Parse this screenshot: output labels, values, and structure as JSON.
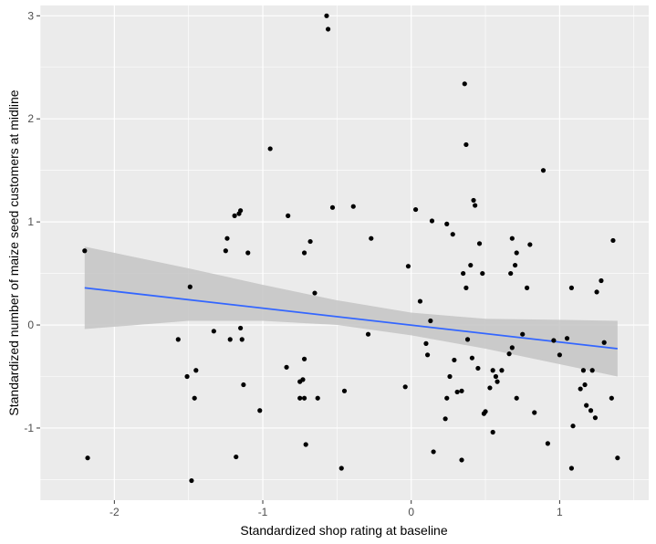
{
  "chart_data": {
    "type": "scatter",
    "title": "",
    "xlabel": "Standardized shop rating at baseline",
    "ylabel": "Standardized number of maize seed customers at midline",
    "xlim": [
      -2.5,
      1.6
    ],
    "ylim": [
      -1.7,
      3.1
    ],
    "x_ticks": [
      -2,
      -1,
      0,
      1
    ],
    "x_tick_labels": [
      "-2",
      "-1",
      "0",
      "1"
    ],
    "y_ticks": [
      -1,
      0,
      1,
      2,
      3
    ],
    "y_tick_labels": [
      "-1",
      "0",
      "1",
      "2",
      "3"
    ],
    "grid": true,
    "legend": "none",
    "colors": {
      "panel_background": "#ebebeb",
      "grid": "#ffffff",
      "points": "#000000",
      "smooth_line": "#3366ff",
      "confidence_band": "#c4c4c4"
    },
    "points": [
      [
        -2.2,
        0.72
      ],
      [
        -2.18,
        -1.29
      ],
      [
        -1.57,
        -0.14
      ],
      [
        -1.51,
        -0.5
      ],
      [
        -1.49,
        0.37
      ],
      [
        -1.48,
        -1.51
      ],
      [
        -1.46,
        -0.71
      ],
      [
        -1.45,
        -0.44
      ],
      [
        -1.33,
        -0.06
      ],
      [
        -1.25,
        0.72
      ],
      [
        -1.24,
        0.84
      ],
      [
        -1.22,
        -0.14
      ],
      [
        -1.19,
        1.06
      ],
      [
        -1.18,
        -1.28
      ],
      [
        -1.16,
        1.08
      ],
      [
        -1.15,
        1.11
      ],
      [
        -1.15,
        -0.03
      ],
      [
        -1.14,
        -0.14
      ],
      [
        -1.13,
        -0.58
      ],
      [
        -1.1,
        0.7
      ],
      [
        -1.02,
        -0.83
      ],
      [
        -0.95,
        1.71
      ],
      [
        -0.84,
        -0.41
      ],
      [
        -0.83,
        1.06
      ],
      [
        -0.75,
        -0.71
      ],
      [
        -0.75,
        -0.55
      ],
      [
        -0.73,
        -0.53
      ],
      [
        -0.72,
        -0.71
      ],
      [
        -0.72,
        0.7
      ],
      [
        -0.72,
        -0.33
      ],
      [
        -0.71,
        -1.16
      ],
      [
        -0.68,
        0.81
      ],
      [
        -0.65,
        0.31
      ],
      [
        -0.63,
        -0.71
      ],
      [
        -0.57,
        3.0
      ],
      [
        -0.56,
        2.87
      ],
      [
        -0.53,
        1.14
      ],
      [
        -0.47,
        -1.39
      ],
      [
        -0.45,
        -0.64
      ],
      [
        -0.39,
        1.15
      ],
      [
        -0.29,
        -0.09
      ],
      [
        -0.27,
        0.84
      ],
      [
        -0.04,
        -0.6
      ],
      [
        -0.02,
        0.57
      ],
      [
        0.03,
        1.12
      ],
      [
        0.06,
        0.23
      ],
      [
        0.1,
        -0.18
      ],
      [
        0.11,
        -0.29
      ],
      [
        0.13,
        0.04
      ],
      [
        0.14,
        1.01
      ],
      [
        0.15,
        -1.23
      ],
      [
        0.23,
        -0.91
      ],
      [
        0.24,
        -0.71
      ],
      [
        0.24,
        0.98
      ],
      [
        0.26,
        -0.5
      ],
      [
        0.28,
        0.88
      ],
      [
        0.29,
        -0.34
      ],
      [
        0.31,
        -0.65
      ],
      [
        0.34,
        -0.64
      ],
      [
        0.34,
        -1.31
      ],
      [
        0.35,
        0.5
      ],
      [
        0.36,
        2.34
      ],
      [
        0.37,
        0.36
      ],
      [
        0.37,
        1.75
      ],
      [
        0.38,
        -0.14
      ],
      [
        0.4,
        0.58
      ],
      [
        0.41,
        -0.32
      ],
      [
        0.42,
        1.21
      ],
      [
        0.43,
        1.16
      ],
      [
        0.45,
        -0.42
      ],
      [
        0.46,
        0.79
      ],
      [
        0.48,
        0.5
      ],
      [
        0.49,
        -0.86
      ],
      [
        0.5,
        -0.84
      ],
      [
        0.53,
        -0.61
      ],
      [
        0.55,
        -1.04
      ],
      [
        0.55,
        -0.44
      ],
      [
        0.57,
        -0.5
      ],
      [
        0.58,
        -0.55
      ],
      [
        0.61,
        -0.44
      ],
      [
        0.66,
        -0.28
      ],
      [
        0.67,
        0.5
      ],
      [
        0.68,
        -0.22
      ],
      [
        0.68,
        0.84
      ],
      [
        0.7,
        0.58
      ],
      [
        0.71,
        0.7
      ],
      [
        0.71,
        -0.71
      ],
      [
        0.75,
        -0.09
      ],
      [
        0.78,
        0.36
      ],
      [
        0.8,
        0.78
      ],
      [
        0.83,
        -0.85
      ],
      [
        0.89,
        1.5
      ],
      [
        0.92,
        -1.15
      ],
      [
        0.96,
        -0.15
      ],
      [
        1.0,
        -0.29
      ],
      [
        1.05,
        -0.13
      ],
      [
        1.08,
        0.36
      ],
      [
        1.08,
        -1.39
      ],
      [
        1.09,
        -0.98
      ],
      [
        1.14,
        -0.62
      ],
      [
        1.16,
        -0.44
      ],
      [
        1.17,
        -0.58
      ],
      [
        1.18,
        -0.78
      ],
      [
        1.21,
        -0.83
      ],
      [
        1.22,
        -0.44
      ],
      [
        1.24,
        -0.9
      ],
      [
        1.25,
        0.32
      ],
      [
        1.28,
        0.43
      ],
      [
        1.3,
        -0.17
      ],
      [
        1.35,
        -0.71
      ],
      [
        1.36,
        0.82
      ],
      [
        1.39,
        -1.29
      ]
    ],
    "smooth_line": {
      "x": [
        -2.2,
        1.39
      ],
      "y": [
        0.36,
        -0.23
      ]
    },
    "confidence_band": {
      "x": [
        -2.2,
        -1.5,
        -1.0,
        -0.5,
        0.0,
        0.5,
        1.0,
        1.39
      ],
      "upper": [
        0.76,
        0.55,
        0.39,
        0.24,
        0.12,
        0.06,
        0.05,
        0.04
      ],
      "lower": [
        -0.04,
        0.04,
        0.04,
        0.0,
        -0.1,
        -0.23,
        -0.38,
        -0.5
      ]
    }
  }
}
